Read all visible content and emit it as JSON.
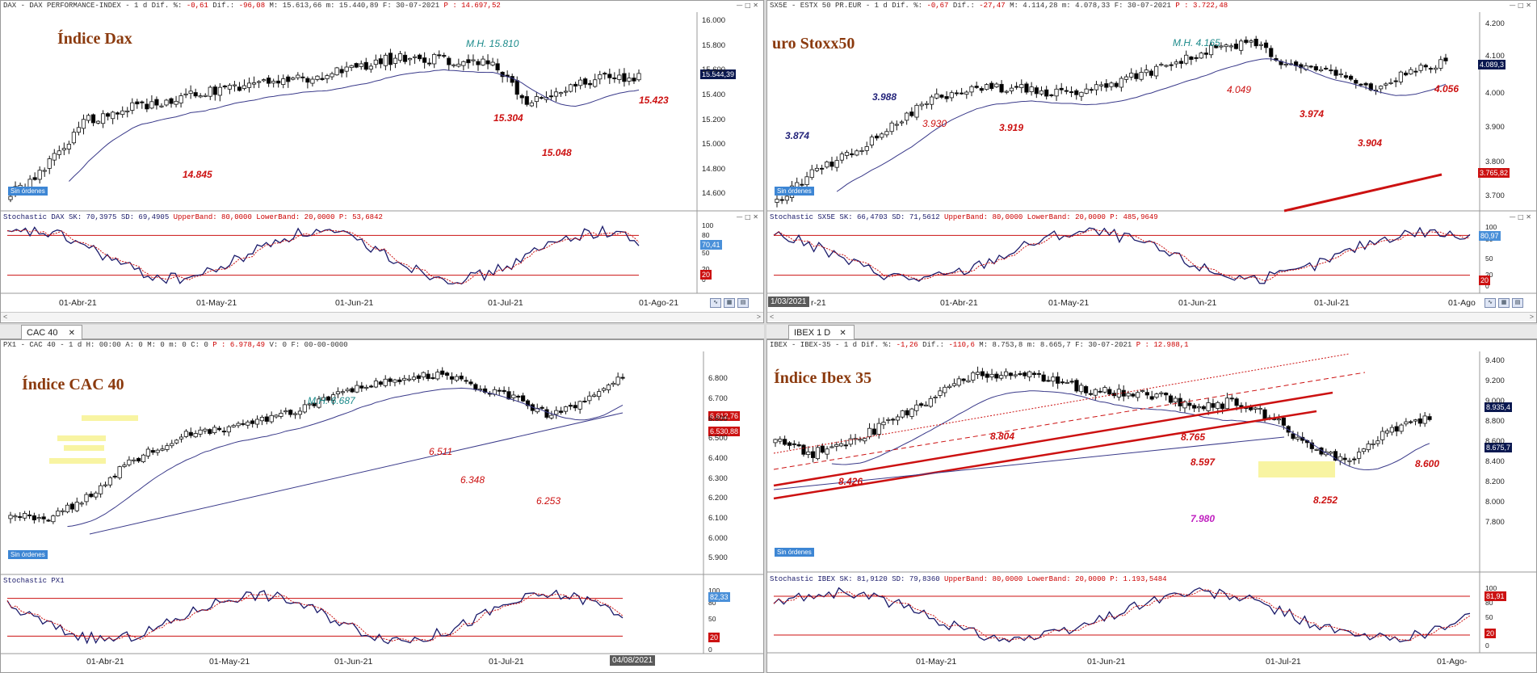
{
  "panels": {
    "dax": {
      "header": {
        "a": "DAX - DAX PERFORMANCE-INDEX - 1 d Dif. %:",
        "b": "-0,61",
        "c": "Dif.:",
        "d": "-96,08",
        "e": "M: 15.613,66 m: 15.440,89 F: 30-07-2021",
        "f": "P : 14.697,52"
      },
      "title": "Índice Dax",
      "annotations": [
        {
          "text": "M.H. 15.810",
          "color": "#1b8a8a"
        },
        {
          "text": "15.423",
          "color": "#cc1111"
        },
        {
          "text": "15.304",
          "color": "#cc1111"
        },
        {
          "text": "15.048",
          "color": "#cc1111"
        },
        {
          "text": "14.845",
          "color": "#cc1111"
        }
      ],
      "badge": "Sin órdenes",
      "price_box": "15.544,39",
      "y_ticks": [
        "16.000",
        "15.800",
        "15.600",
        "15.400",
        "15.200",
        "15.000",
        "14.800",
        "14.600"
      ],
      "stoch_header": {
        "a": "Stochastic DAX SK: 70,3975 SD: 69,4905",
        "b": "UpperBand: 80,0000 LowerBand: 20,0000 P: 53,6842"
      },
      "stoch_ticks": [
        "100",
        "80",
        "50",
        "20",
        "0"
      ],
      "stoch_box": "70,41",
      "stoch_lower_box": "20",
      "dates": [
        "01-Abr-21",
        "01-May-21",
        "01-Jun-21",
        "01-Jul-21",
        "01-Ago-21"
      ]
    },
    "stoxx": {
      "header": {
        "a": "SX5E - ESTX 50 PR.EUR - 1 d Dif. %:",
        "b": "-0,67",
        "c": "Dif.:",
        "d": "-27,47",
        "e": "M: 4.114,28 m: 4.078,33 F: 30-07-2021",
        "f": "P : 3.722,48"
      },
      "title": "uro Stoxx50",
      "annotations": [
        {
          "text": "M.H. 4.165",
          "color": "#1b8a8a"
        },
        {
          "text": "3.988",
          "color": "#23237a"
        },
        {
          "text": "3.874",
          "color": "#23237a"
        },
        {
          "text": "3.930",
          "color": "#cc1111"
        },
        {
          "text": "3.919",
          "color": "#cc1111"
        },
        {
          "text": "4.049",
          "color": "#cc1111"
        },
        {
          "text": "3.974",
          "color": "#cc1111"
        },
        {
          "text": "3.904",
          "color": "#cc1111"
        },
        {
          "text": "4.056",
          "color": "#cc1111"
        }
      ],
      "badge": "Sin órdenes",
      "price_box": "4.089,3",
      "price_box2": "3.765,82",
      "y_ticks": [
        "4.200",
        "4.100",
        "4.000",
        "3.900",
        "3.800",
        "3.700"
      ],
      "stoch_header": {
        "a": "Stochastic SX5E SK: 66,4703 SD: 71,5612",
        "b": "UpperBand: 80,0000 LowerBand: 20,0000 P: 485,9649"
      },
      "stoch_ticks": [
        "100",
        "80",
        "50",
        "20",
        "0"
      ],
      "stoch_box": "80,97",
      "stoch_lower_box": "20",
      "date_box": "1/03/2021",
      "dates": [
        "r-21",
        "01-Abr-21",
        "01-May-21",
        "01-Jun-21",
        "01-Jul-21",
        "01-Ago"
      ]
    },
    "cac": {
      "tab": "CAC 40",
      "header": {
        "a": "PX1 - CAC 40 - 1 d H: 00:00 A: 0 M: 0 m: 0 C: 0",
        "b": "P : 6.978,49",
        "c": "V: 0 F: 00-00-0000"
      },
      "title": "Índice CAC 40",
      "annotations": [
        {
          "text": "M.H. 6.687",
          "color": "#1b8a8a"
        },
        {
          "text": "6.511",
          "color": "#cc1111"
        },
        {
          "text": "6.348",
          "color": "#cc1111"
        },
        {
          "text": "6.253",
          "color": "#cc1111"
        }
      ],
      "badge": "Sin órdenes",
      "price_box": "6.612,76",
      "price_box2": "6.530,88",
      "y_ticks": [
        "6.800",
        "6.700",
        "6.600",
        "6.500",
        "6.400",
        "6.300",
        "6.200",
        "6.100",
        "6.000",
        "5.900"
      ],
      "stoch_header": {
        "a": "Stochastic PX1",
        "b": ""
      },
      "stoch_ticks": [
        "100",
        "80",
        "50",
        "20",
        "0"
      ],
      "stoch_box": "82,33",
      "stoch_lower_box": "20",
      "date_box": "04/08/2021",
      "dates": [
        "01-Abr-21",
        "01-May-21",
        "01-Jun-21",
        "01-Jul-21"
      ]
    },
    "ibex": {
      "tab": "IBEX 1 D",
      "header": {
        "a": "IBEX - IBEX-35 - 1 d Dif. %:",
        "b": "-1,26",
        "c": "Dif.:",
        "d": "-110,6",
        "e": "M: 8.753,8 m: 8.665,7 F: 30-07-2021",
        "f": "P : 12.988,1"
      },
      "title": "Índice Ibex 35",
      "annotations": [
        {
          "text": "8.804",
          "color": "#cc1111"
        },
        {
          "text": "8.765",
          "color": "#cc1111"
        },
        {
          "text": "8.597",
          "color": "#cc1111"
        },
        {
          "text": "8.426",
          "color": "#cc1111"
        },
        {
          "text": "8.600",
          "color": "#cc1111"
        },
        {
          "text": "8.252",
          "color": "#cc1111"
        },
        {
          "text": "7.980",
          "color": "#c020c0"
        }
      ],
      "badge": "Sin órdenes",
      "price_box": "8.935,4",
      "price_box2": "8.675,7",
      "y_ticks": [
        "9.400",
        "9.200",
        "9.000",
        "8.800",
        "8.600",
        "8.400",
        "8.200",
        "8.000",
        "7.800"
      ],
      "stoch_header": {
        "a": "Stochastic IBEX SK: 81,9120 SD: 79,8360",
        "b": "UpperBand: 80,0000 LowerBand: 20,0000 P: 1.193,5484"
      },
      "stoch_ticks": [
        "100",
        "80",
        "50",
        "20",
        "0"
      ],
      "stoch_box": "81,91",
      "stoch_lower_box": "20",
      "dates": [
        "01-May-21",
        "01-Jun-21",
        "01-Jul-21",
        "01-Ago-"
      ]
    }
  },
  "colors": {
    "candle_up": "#ffffff",
    "candle_down": "#000000",
    "ma": "#3a3a8a",
    "support": "#cc1111",
    "resistance": "#23237a",
    "high": "#1b8a8a",
    "title": "#8b3a0e",
    "stoch_k": "#1a1a6a",
    "stoch_d": "#cc1111"
  }
}
